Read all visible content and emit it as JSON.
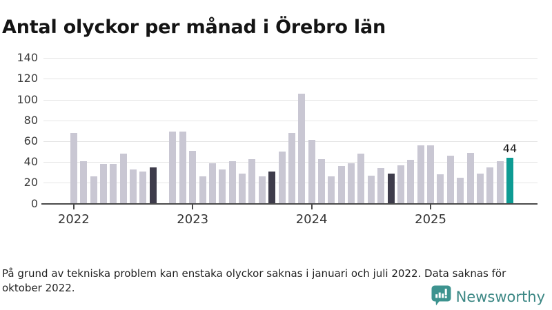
{
  "title": "Antal olyckor per månad i Örebro län",
  "footnote": "På grund av tekniska problem kan enstaka olyckor saknas i januari och juli 2022. Data saknas för oktober 2022.",
  "logo": {
    "text": "Newsworthy",
    "icon": "newsworthy-speech-bubble-bar-chart-icon",
    "color": "#3b8784",
    "icon_color": "#3d938f"
  },
  "chart_data": {
    "type": "bar",
    "title": "Antal olyckor per månad i Örebro län",
    "xlabel": "",
    "ylabel": "",
    "ylim": [
      0,
      140
    ],
    "yticks": [
      0,
      20,
      40,
      60,
      80,
      100,
      120,
      140
    ],
    "grid": "horizontal",
    "legend": "none",
    "x_tick_labels": [
      "2022",
      "2023",
      "2024",
      "2025"
    ],
    "missing_months": [
      "2022-10"
    ],
    "colors": {
      "default": "#c9c7d3",
      "dark": "#3e3c4b",
      "accent": "#0d9b93"
    },
    "data_label": {
      "month": "2025-09",
      "text": "44"
    },
    "series": [
      {
        "m": "2022-01",
        "v": 68,
        "c": "default"
      },
      {
        "m": "2022-02",
        "v": 41,
        "c": "default"
      },
      {
        "m": "2022-03",
        "v": 26,
        "c": "default"
      },
      {
        "m": "2022-04",
        "v": 38,
        "c": "default"
      },
      {
        "m": "2022-05",
        "v": 38,
        "c": "default"
      },
      {
        "m": "2022-06",
        "v": 48,
        "c": "default"
      },
      {
        "m": "2022-07",
        "v": 33,
        "c": "default"
      },
      {
        "m": "2022-08",
        "v": 31,
        "c": "default"
      },
      {
        "m": "2022-09",
        "v": 35,
        "c": "dark"
      },
      {
        "m": "2022-11",
        "v": 69,
        "c": "default"
      },
      {
        "m": "2022-12",
        "v": 69,
        "c": "default"
      },
      {
        "m": "2023-01",
        "v": 51,
        "c": "default"
      },
      {
        "m": "2023-02",
        "v": 26,
        "c": "default"
      },
      {
        "m": "2023-03",
        "v": 39,
        "c": "default"
      },
      {
        "m": "2023-04",
        "v": 33,
        "c": "default"
      },
      {
        "m": "2023-05",
        "v": 41,
        "c": "default"
      },
      {
        "m": "2023-06",
        "v": 29,
        "c": "default"
      },
      {
        "m": "2023-07",
        "v": 43,
        "c": "default"
      },
      {
        "m": "2023-08",
        "v": 26,
        "c": "default"
      },
      {
        "m": "2023-09",
        "v": 31,
        "c": "dark"
      },
      {
        "m": "2023-10",
        "v": 50,
        "c": "default"
      },
      {
        "m": "2023-11",
        "v": 68,
        "c": "default"
      },
      {
        "m": "2023-12",
        "v": 106,
        "c": "default"
      },
      {
        "m": "2024-01",
        "v": 61,
        "c": "default"
      },
      {
        "m": "2024-02",
        "v": 43,
        "c": "default"
      },
      {
        "m": "2024-03",
        "v": 26,
        "c": "default"
      },
      {
        "m": "2024-04",
        "v": 36,
        "c": "default"
      },
      {
        "m": "2024-05",
        "v": 39,
        "c": "default"
      },
      {
        "m": "2024-06",
        "v": 48,
        "c": "default"
      },
      {
        "m": "2024-07",
        "v": 27,
        "c": "default"
      },
      {
        "m": "2024-08",
        "v": 34,
        "c": "default"
      },
      {
        "m": "2024-09",
        "v": 29,
        "c": "dark"
      },
      {
        "m": "2024-10",
        "v": 37,
        "c": "default"
      },
      {
        "m": "2024-11",
        "v": 42,
        "c": "default"
      },
      {
        "m": "2024-12",
        "v": 56,
        "c": "default"
      },
      {
        "m": "2025-01",
        "v": 56,
        "c": "default"
      },
      {
        "m": "2025-02",
        "v": 28,
        "c": "default"
      },
      {
        "m": "2025-03",
        "v": 46,
        "c": "default"
      },
      {
        "m": "2025-04",
        "v": 25,
        "c": "default"
      },
      {
        "m": "2025-05",
        "v": 49,
        "c": "default"
      },
      {
        "m": "2025-06",
        "v": 29,
        "c": "default"
      },
      {
        "m": "2025-07",
        "v": 35,
        "c": "default"
      },
      {
        "m": "2025-08",
        "v": 41,
        "c": "default"
      },
      {
        "m": "2025-09",
        "v": 44,
        "c": "accent"
      }
    ]
  }
}
